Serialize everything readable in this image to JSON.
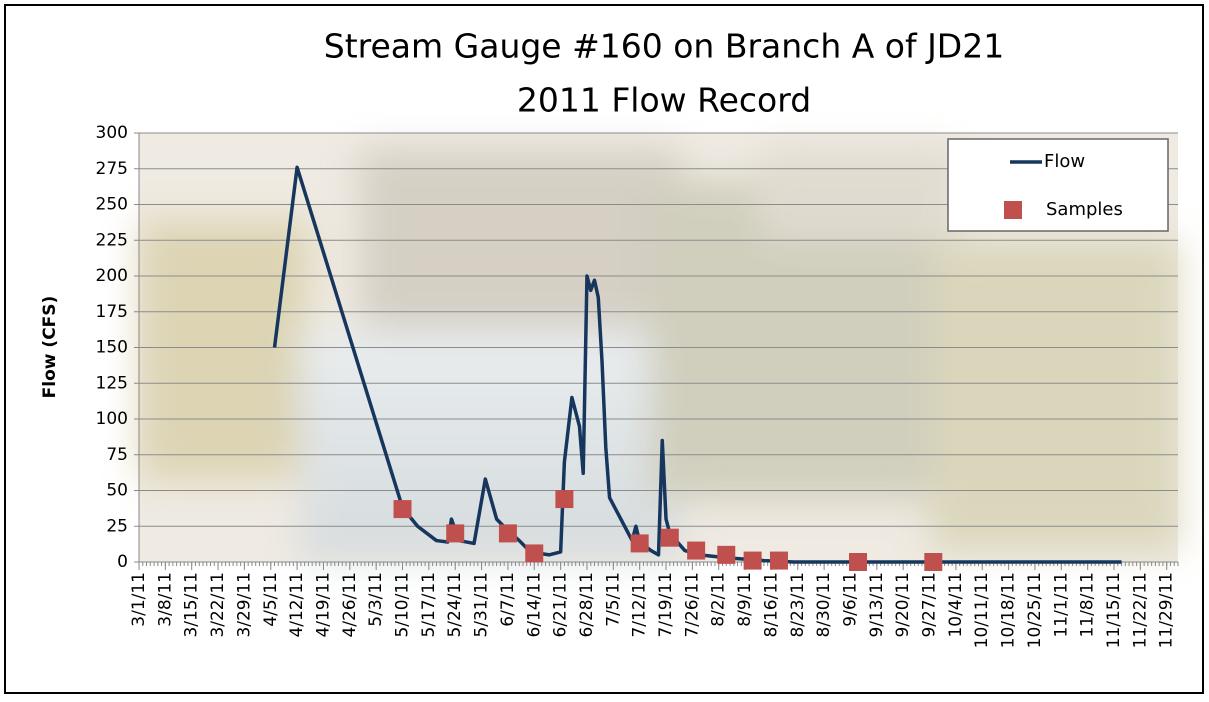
{
  "chart_data": {
    "type": "line",
    "title": "Stream Gauge #160 on Branch A of JD21",
    "subtitle": "2011 Flow Record",
    "y_label": "Flow (CFS)",
    "xlim": [
      "3/1/11",
      "12/2/11"
    ],
    "xticks": [
      "3/1/11",
      "3/8/11",
      "3/15/11",
      "3/22/11",
      "3/29/11",
      "4/5/11",
      "4/12/11",
      "4/19/11",
      "4/26/11",
      "5/3/11",
      "5/10/11",
      "5/17/11",
      "5/24/11",
      "5/31/11",
      "6/7/11",
      "6/14/11",
      "6/21/11",
      "6/28/11",
      "7/5/11",
      "7/12/11",
      "7/19/11",
      "7/26/11",
      "8/2/11",
      "8/9/11",
      "8/16/11",
      "8/23/11",
      "8/30/11",
      "9/6/11",
      "9/13/11",
      "9/20/11",
      "9/27/11",
      "10/4/11",
      "10/11/11",
      "10/18/11",
      "10/25/11",
      "11/1/11",
      "11/8/11",
      "11/15/11",
      "11/22/11",
      "11/29/11"
    ],
    "ylim": [
      0,
      300
    ],
    "yticks": [
      0,
      25,
      50,
      75,
      100,
      125,
      150,
      175,
      200,
      225,
      250,
      275,
      300
    ],
    "grid": true,
    "legend": "upper right",
    "series": [
      {
        "name": "Flow",
        "color": "#17365d",
        "kind": "line",
        "x": [
          "4/6/11",
          "4/12/11",
          "5/10/11",
          "5/14/11",
          "5/19/11",
          "5/22/11",
          "5/23/11",
          "5/25/11",
          "5/29/11",
          "6/1/11",
          "6/4/11",
          "6/7/11",
          "6/10/11",
          "6/13/11",
          "6/18/11",
          "6/21/11",
          "6/22/11",
          "6/24/11",
          "6/26/11",
          "6/27/11",
          "6/28/11",
          "6/29/11",
          "6/30/11",
          "7/1/11",
          "7/2/11",
          "7/3/11",
          "7/4/11",
          "7/6/11",
          "7/8/11",
          "7/10/11",
          "7/11/11",
          "7/12/11",
          "7/15/11",
          "7/17/11",
          "7/18/11",
          "7/19/11",
          "7/20/11",
          "7/24/11",
          "7/28/11",
          "8/4/11",
          "8/14/11",
          "8/22/11",
          "11/17/11"
        ],
        "values": [
          150,
          276,
          38,
          25,
          15,
          14,
          30,
          15,
          13,
          58,
          30,
          22,
          15,
          7,
          5,
          7,
          70,
          115,
          95,
          62,
          200,
          190,
          197,
          185,
          140,
          80,
          45,
          35,
          25,
          15,
          25,
          14,
          8,
          5,
          85,
          30,
          20,
          8,
          5,
          3,
          1,
          0,
          0
        ]
      },
      {
        "name": "Samples",
        "color": "#c0504d",
        "kind": "marker",
        "x": [
          "5/10/11",
          "5/24/11",
          "6/7/11",
          "6/14/11",
          "6/22/11",
          "7/12/11",
          "7/20/11",
          "7/27/11",
          "8/4/11",
          "8/11/11",
          "8/18/11",
          "9/8/11",
          "9/28/11"
        ],
        "values": [
          37,
          20,
          20,
          6,
          44,
          13,
          17,
          8,
          5,
          1,
          1,
          0,
          0
        ]
      }
    ]
  }
}
